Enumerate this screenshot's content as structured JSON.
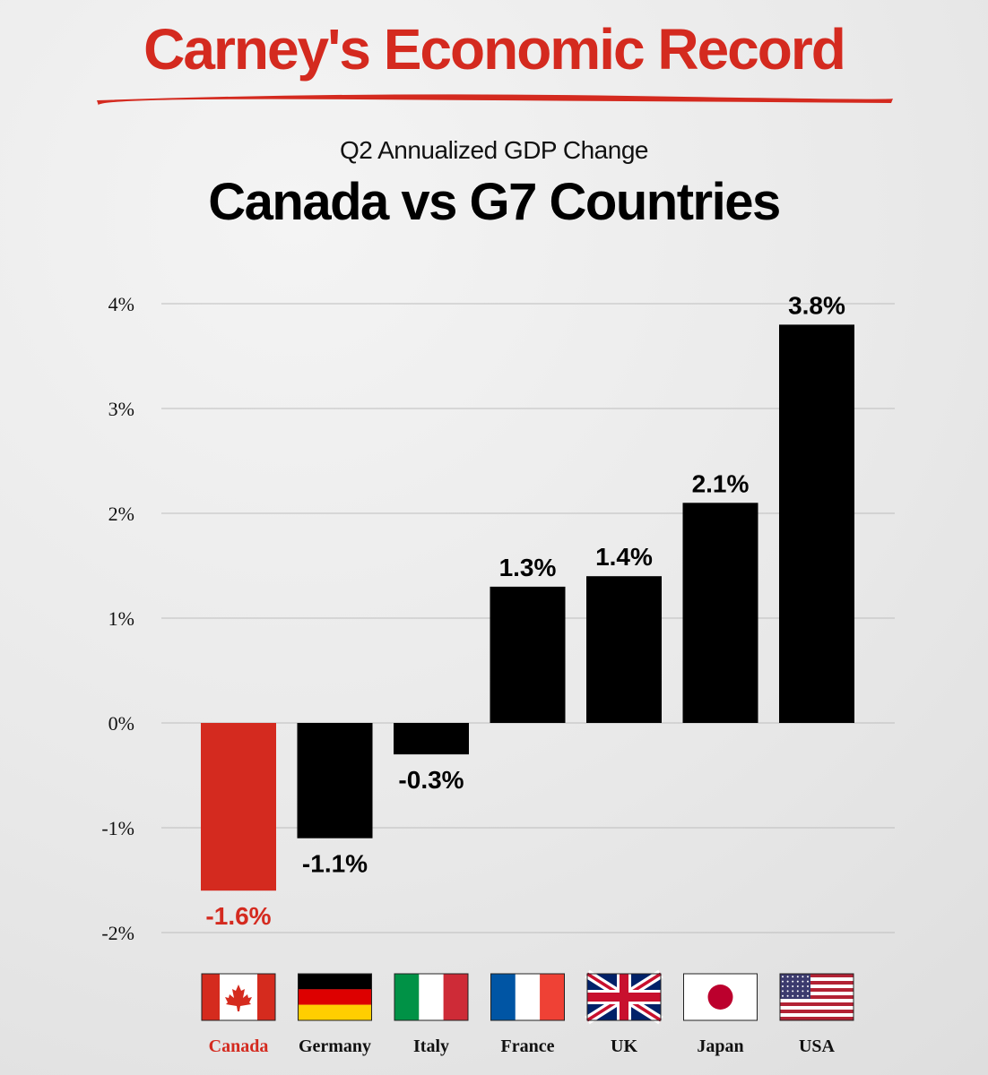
{
  "header": {
    "headline": "Carney's Economic Record",
    "subtitle": "Q2 Annualized GDP Change",
    "title": "Canada vs G7 Countries"
  },
  "colors": {
    "highlight": "#d42a1f",
    "bar": "#000000",
    "grid": "#bdbdbd"
  },
  "chart_data": {
    "type": "bar",
    "title": "Canada vs G7 Countries",
    "subtitle": "Q2 Annualized GDP Change",
    "xlabel": "",
    "ylabel": "",
    "categories": [
      "Canada",
      "Germany",
      "Italy",
      "France",
      "UK",
      "Japan",
      "USA"
    ],
    "values": [
      -1.6,
      -1.1,
      -0.3,
      1.3,
      1.4,
      2.1,
      3.8
    ],
    "value_labels": [
      "-1.6%",
      "-1.1%",
      "-0.3%",
      "1.3%",
      "1.4%",
      "2.1%",
      "3.8%"
    ],
    "highlight": "Canada",
    "flag_icons": [
      "flag-canada-icon",
      "flag-germany-icon",
      "flag-italy-icon",
      "flag-france-icon",
      "flag-uk-icon",
      "flag-japan-icon",
      "flag-usa-icon"
    ],
    "yticks": [
      4,
      3,
      2,
      1,
      0,
      -1,
      -2
    ],
    "ytick_labels": [
      "4%",
      "3%",
      "2%",
      "1%",
      "0%",
      "-1%",
      "-2%"
    ],
    "ylim": [
      -2,
      4
    ],
    "grid": true,
    "legend": "none"
  }
}
